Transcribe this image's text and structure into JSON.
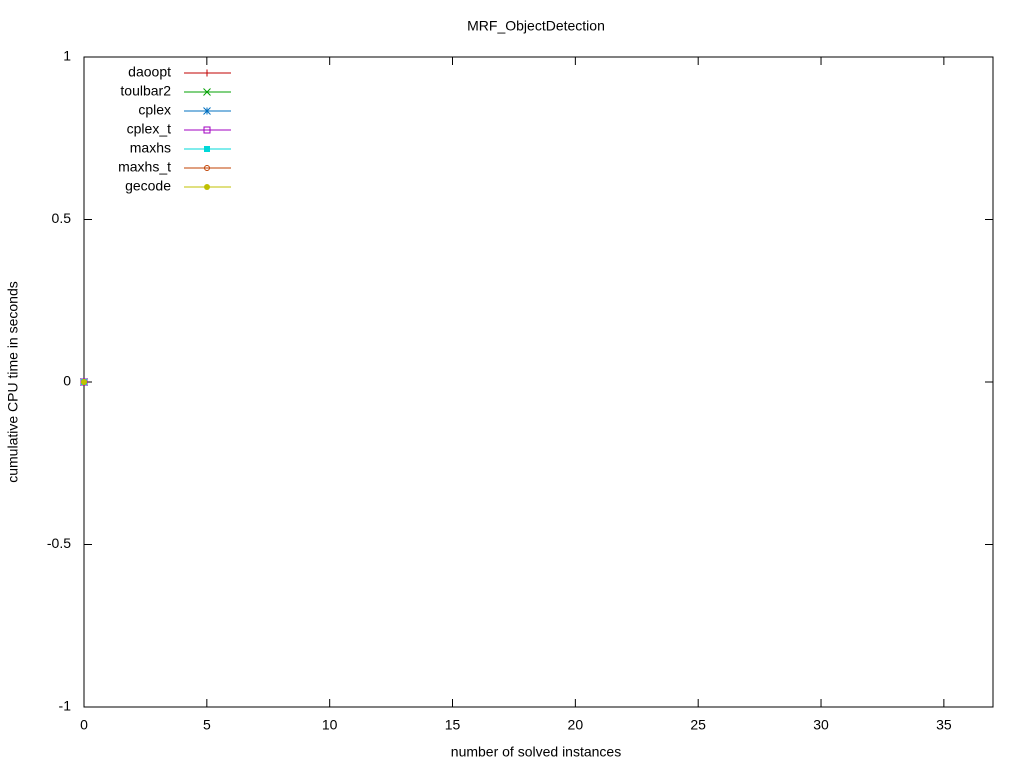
{
  "chart_data": {
    "type": "line",
    "title": "MRF_ObjectDetection",
    "xlabel": "number of solved instances",
    "ylabel": "cumulative CPU time in seconds",
    "xlim": [
      0,
      37
    ],
    "xticks": [
      0,
      5,
      10,
      15,
      20,
      25,
      30,
      35
    ],
    "ylim": [
      -1,
      1
    ],
    "yticks": [
      -1,
      -0.5,
      0,
      0.5,
      1
    ],
    "legend": "top-left",
    "series": [
      {
        "name": "daoopt",
        "color": "#c00000",
        "marker": "plus",
        "x": [
          0
        ],
        "values": [
          0
        ]
      },
      {
        "name": "toulbar2",
        "color": "#00a000",
        "marker": "cross",
        "x": [
          0
        ],
        "values": [
          0
        ]
      },
      {
        "name": "cplex",
        "color": "#0070c0",
        "marker": "star",
        "x": [
          0
        ],
        "values": [
          0
        ]
      },
      {
        "name": "cplex_t",
        "color": "#a000c0",
        "marker": "square-open",
        "x": [
          0
        ],
        "values": [
          0
        ]
      },
      {
        "name": "maxhs",
        "color": "#00d8d8",
        "marker": "square",
        "x": [
          0
        ],
        "values": [
          0
        ]
      },
      {
        "name": "maxhs_t",
        "color": "#c04000",
        "marker": "circle-open",
        "x": [
          0
        ],
        "values": [
          0
        ]
      },
      {
        "name": "gecode",
        "color": "#c0c000",
        "marker": "circle",
        "x": [
          0
        ],
        "values": [
          0
        ]
      }
    ]
  }
}
